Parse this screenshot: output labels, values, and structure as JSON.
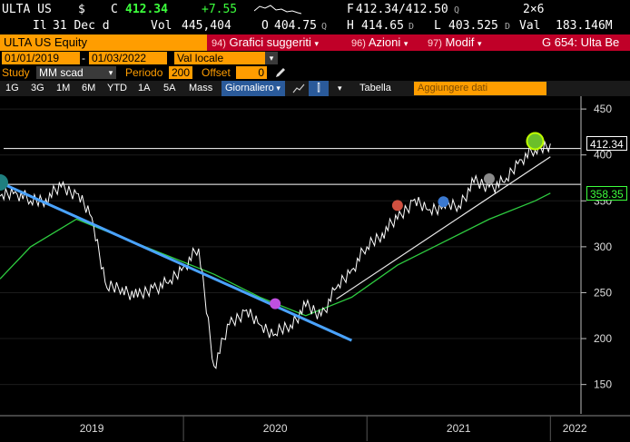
{
  "header": {
    "ticker": "ULTA US",
    "currency": "$",
    "price_prefix": "C",
    "price": "412.34",
    "change": "+7.55",
    "bid_ask_prefix": "F",
    "bid_ask": "412.34/412.50",
    "bid_ask_suffix": "Q",
    "size": "2×6",
    "row2_il": "Il",
    "row2_date": "31 Dec d",
    "vol_label": "Vol",
    "vol_value": "445,404",
    "open_label": "O",
    "open_value": "404.75",
    "open_suffix": "Q",
    "high_label": "H",
    "high_value": "414.65",
    "high_suffix": "D",
    "low_label": "L",
    "low_value": "403.525",
    "low_suffix": "D",
    "val_label": "Val",
    "val_value": "183.146M"
  },
  "menubar": {
    "security": "ULTA US Equity",
    "b1_num": "94)",
    "b1_label": "Grafici suggeriti",
    "b2_num": "96)",
    "b2_label": "Azioni",
    "b3_num": "97)",
    "b3_label": "Modif",
    "page_label": "G 654: Ulta Be"
  },
  "controls": {
    "date_start": "01/01/2019",
    "date_end": "01/03/2022",
    "currency_select": "Val locale",
    "study_label": "Study",
    "study_value": "MM scad",
    "period_label": "Periodo",
    "period_value": "200",
    "offset_label": "Offset",
    "offset_value": "0",
    "pencil_icon": "pencil-icon"
  },
  "toolbar": {
    "t_1g": "1G",
    "t_3g": "3G",
    "t_1m": "1M",
    "t_6m": "6M",
    "t_ytd": "YTD",
    "t_1a": "1A",
    "t_5a": "5A",
    "t_mass": "Mass",
    "t_freq": "Giornaliero",
    "table_label": "Tabella",
    "add_data_placeholder": "Aggiungere dati"
  },
  "colors": {
    "price_line": "#ffffff",
    "ma_line": "#2ecc40",
    "trend_down": "#4aa3ff",
    "trend_up": "#e8e8e8",
    "menu_red": "#c00028",
    "orange": "#ff9d00"
  },
  "chart_data": {
    "type": "line",
    "y_ticks": [
      "450",
      "400",
      "350",
      "300",
      "250",
      "200",
      "150"
    ],
    "ylim": [
      120,
      460
    ],
    "x_labels": [
      "2019",
      "2020",
      "2021",
      "2022"
    ],
    "last_price_label": "412.34",
    "ma_label": "358.35",
    "series": [
      {
        "kind": "price",
        "points": [
          [
            "2019-01",
            355
          ],
          [
            "2019-02",
            360
          ],
          [
            "2019-03",
            350
          ],
          [
            "2019-04",
            352
          ],
          [
            "2019-05",
            365
          ],
          [
            "2019-06",
            358
          ],
          [
            "2019-07",
            332
          ],
          [
            "2019-08",
            255
          ],
          [
            "2019-09",
            255
          ],
          [
            "2019-10",
            245
          ],
          [
            "2019-11",
            255
          ],
          [
            "2019-12",
            260
          ],
          [
            "2020-01",
            278
          ],
          [
            "2020-02",
            298
          ],
          [
            "2020-03",
            170
          ],
          [
            "2020-04",
            215
          ],
          [
            "2020-05",
            230
          ],
          [
            "2020-06",
            215
          ],
          [
            "2020-07",
            205
          ],
          [
            "2020-08",
            215
          ],
          [
            "2020-09",
            235
          ],
          [
            "2020-10",
            225
          ],
          [
            "2020-11",
            255
          ],
          [
            "2020-12",
            275
          ],
          [
            "2021-01",
            300
          ],
          [
            "2021-02",
            315
          ],
          [
            "2021-03",
            330
          ],
          [
            "2021-04",
            350
          ],
          [
            "2021-05",
            340
          ],
          [
            "2021-06",
            345
          ],
          [
            "2021-07",
            345
          ],
          [
            "2021-08",
            370
          ],
          [
            "2021-09",
            365
          ],
          [
            "2021-10",
            370
          ],
          [
            "2021-11",
            395
          ],
          [
            "2021-12",
            405
          ],
          [
            "2022-01",
            412.34
          ]
        ]
      },
      {
        "kind": "moving_average",
        "points": [
          [
            "2019-01",
            265
          ],
          [
            "2019-03",
            300
          ],
          [
            "2019-06",
            330
          ],
          [
            "2019-09",
            310
          ],
          [
            "2019-12",
            290
          ],
          [
            "2020-03",
            270
          ],
          [
            "2020-06",
            245
          ],
          [
            "2020-09",
            225
          ],
          [
            "2020-12",
            245
          ],
          [
            "2021-03",
            280
          ],
          [
            "2021-06",
            305
          ],
          [
            "2021-09",
            330
          ],
          [
            "2021-12",
            350
          ],
          [
            "2022-01",
            358.35
          ]
        ]
      }
    ],
    "trend_lines": [
      {
        "kind": "down",
        "from": [
          "2019-01",
          370
        ],
        "to": [
          "2020-12",
          198
        ]
      },
      {
        "kind": "up",
        "from": [
          "2020-11",
          243
        ],
        "to": [
          "2022-01",
          398
        ]
      }
    ],
    "horizontal_levels": [
      368,
      407
    ],
    "markers": [
      {
        "at": [
          "2019-01",
          370
        ],
        "color": "#1f7f7f"
      },
      {
        "at": [
          "2020-07",
          238
        ],
        "color": "#c050e0"
      },
      {
        "at": [
          "2021-03",
          345
        ],
        "color": "#d05040"
      },
      {
        "at": [
          "2021-06",
          349
        ],
        "color": "#3a78d0"
      },
      {
        "at": [
          "2021-09",
          374
        ],
        "color": "#8a8a8a"
      },
      {
        "at": [
          "2021-12",
          415
        ],
        "color": "#6bbf2a"
      }
    ]
  }
}
